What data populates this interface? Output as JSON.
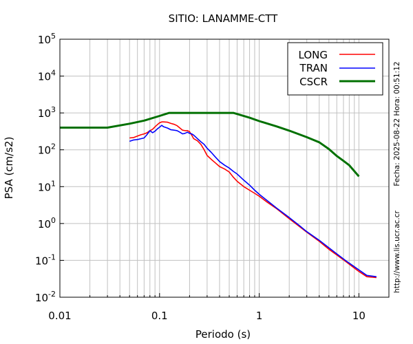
{
  "chart_data": {
    "type": "line",
    "title": "SITIO: LANAMME-CTT",
    "xlabel": "Periodo (s)",
    "ylabel": "PSA (cm/s2)",
    "xscale": "log",
    "yscale": "log",
    "xlim": [
      0.01,
      20
    ],
    "ylim": [
      0.01,
      100000
    ],
    "grid": true,
    "legend_position": "top-right",
    "x_ticks": [
      {
        "value": 0.01,
        "label": "0.01"
      },
      {
        "value": 0.1,
        "label": "0.1"
      },
      {
        "value": 1,
        "label": "1"
      },
      {
        "value": 10,
        "label": "10"
      }
    ],
    "y_ticks": [
      {
        "value": 0.01,
        "base": "10",
        "exp": "-2"
      },
      {
        "value": 0.1,
        "base": "10",
        "exp": "-1"
      },
      {
        "value": 1,
        "base": "10",
        "exp": "0"
      },
      {
        "value": 10,
        "base": "10",
        "exp": "1"
      },
      {
        "value": 100,
        "base": "10",
        "exp": "2"
      },
      {
        "value": 1000,
        "base": "10",
        "exp": "3"
      },
      {
        "value": 10000,
        "base": "10",
        "exp": "4"
      },
      {
        "value": 100000,
        "base": "10",
        "exp": "5"
      }
    ],
    "series": [
      {
        "name": "LONG",
        "color": "#ff0000",
        "x": [
          0.05,
          0.055,
          0.06,
          0.065,
          0.07,
          0.075,
          0.08,
          0.085,
          0.09,
          0.095,
          0.1,
          0.105,
          0.11,
          0.12,
          0.13,
          0.14,
          0.15,
          0.16,
          0.17,
          0.18,
          0.19,
          0.2,
          0.21,
          0.22,
          0.24,
          0.26,
          0.28,
          0.3,
          0.33,
          0.36,
          0.4,
          0.45,
          0.5,
          0.55,
          0.6,
          0.7,
          0.8,
          0.9,
          1.0,
          1.2,
          1.5,
          2.0,
          2.5,
          3.0,
          4.0,
          5.0,
          6.0,
          7.5,
          10.0,
          12.0,
          15.0
        ],
        "y": [
          210,
          215,
          235,
          255,
          270,
          290,
          330,
          360,
          420,
          480,
          540,
          570,
          570,
          560,
          520,
          490,
          450,
          390,
          340,
          330,
          330,
          310,
          250,
          200,
          175,
          140,
          100,
          70,
          55,
          45,
          35,
          30,
          25,
          18,
          14,
          10,
          8,
          6.6,
          5.5,
          3.8,
          2.5,
          1.35,
          0.85,
          0.58,
          0.33,
          0.2,
          0.14,
          0.09,
          0.05,
          0.036,
          0.034
        ]
      },
      {
        "name": "TRAN",
        "color": "#0000ff",
        "x": [
          0.05,
          0.055,
          0.06,
          0.065,
          0.07,
          0.075,
          0.08,
          0.085,
          0.09,
          0.095,
          0.1,
          0.105,
          0.11,
          0.12,
          0.13,
          0.14,
          0.15,
          0.16,
          0.17,
          0.18,
          0.19,
          0.2,
          0.21,
          0.22,
          0.24,
          0.26,
          0.28,
          0.3,
          0.33,
          0.36,
          0.4,
          0.45,
          0.5,
          0.55,
          0.6,
          0.7,
          0.8,
          0.9,
          1.0,
          1.2,
          1.5,
          2.0,
          2.5,
          3.0,
          4.0,
          5.0,
          6.0,
          7.5,
          10.0,
          12.0,
          15.0
        ],
        "y": [
          170,
          185,
          190,
          200,
          210,
          260,
          330,
          290,
          320,
          370,
          410,
          460,
          420,
          390,
          350,
          340,
          330,
          300,
          270,
          280,
          300,
          280,
          270,
          250,
          200,
          165,
          140,
          110,
          85,
          65,
          48,
          38,
          32,
          26,
          22,
          15,
          11,
          8,
          6.2,
          4.2,
          2.6,
          1.45,
          0.9,
          0.6,
          0.35,
          0.22,
          0.15,
          0.095,
          0.055,
          0.039,
          0.036
        ]
      },
      {
        "name": "CSCR",
        "color": "#007000",
        "x": [
          0.01,
          0.03,
          0.05,
          0.07,
          0.1,
          0.125,
          0.2,
          0.3,
          0.4,
          0.55,
          0.8,
          1.0,
          1.5,
          2.0,
          3.0,
          3.5,
          4.0,
          5.0,
          6.0,
          7.0,
          8.0,
          10.0
        ],
        "y": [
          400,
          400,
          510,
          620,
          830,
          1000,
          1000,
          1000,
          1000,
          1000,
          740,
          600,
          430,
          330,
          220,
          185,
          160,
          105,
          68,
          50,
          38,
          19
        ]
      }
    ]
  },
  "side_text": {
    "datetime": "Fecha: 2025-08-22 Hora: 00:51:12",
    "url": "http://www.lis.ucr.ac.cr"
  }
}
